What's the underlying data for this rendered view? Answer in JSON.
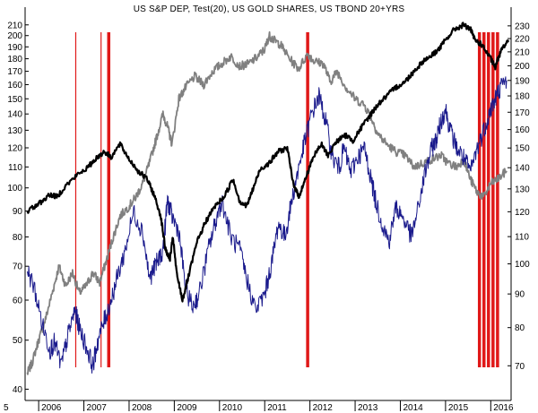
{
  "chart_data": {
    "type": "line",
    "title": "US S&P DEP, Test(20), US GOLD SHARES, US TBOND 20+YRS",
    "x_range": [
      "2005-09",
      "2016-06"
    ],
    "x_ticks": [
      "5",
      "2006",
      "2007",
      "2008",
      "2009",
      "2010",
      "2011",
      "2012",
      "2013",
      "2014",
      "2015",
      "2016"
    ],
    "y_left": {
      "scale": "log",
      "range": [
        38,
        215
      ],
      "ticks": [
        40,
        50,
        60,
        70,
        80,
        90,
        100,
        110,
        120,
        130,
        140,
        150,
        160,
        170,
        180,
        190,
        200,
        210
      ]
    },
    "y_right": {
      "scale": "log",
      "range": [
        62,
        235
      ],
      "ticks": [
        70,
        80,
        90,
        100,
        110,
        120,
        130,
        140,
        150,
        160,
        170,
        180,
        190,
        200,
        210,
        220,
        230
      ]
    },
    "grid": false,
    "legend": "none",
    "colors": {
      "sp": "#000000",
      "gold": "#1a1a8c",
      "tbond": "#808080",
      "signal": "#e01818"
    },
    "series": [
      {
        "key": "sp",
        "axis": "left",
        "x": [
          2005.75,
          2006.0,
          2006.25,
          2006.4,
          2006.6,
          2006.85,
          2007.1,
          2007.25,
          2007.45,
          2007.6,
          2007.8,
          2008.0,
          2008.2,
          2008.4,
          2008.55,
          2008.7,
          2008.8,
          2008.9,
          2008.97,
          2009.05,
          2009.18,
          2009.3,
          2009.5,
          2009.7,
          2009.9,
          2010.1,
          2010.3,
          2010.45,
          2010.6,
          2010.75,
          2010.9,
          2011.1,
          2011.3,
          2011.5,
          2011.62,
          2011.75,
          2011.9,
          2012.05,
          2012.25,
          2012.4,
          2012.6,
          2012.8,
          2012.95,
          2013.15,
          2013.35,
          2013.5,
          2013.7,
          2013.9,
          2014.1,
          2014.3,
          2014.5,
          2014.7,
          2014.85,
          2015.0,
          2015.2,
          2015.4,
          2015.55,
          2015.65,
          2015.8,
          2016.0,
          2016.1,
          2016.25,
          2016.4
        ],
        "y": [
          90,
          93,
          97,
          96,
          101,
          106,
          110,
          114,
          118,
          115,
          122,
          114,
          108,
          104,
          97,
          88,
          76,
          72,
          80,
          68,
          60,
          66,
          78,
          86,
          92,
          96,
          104,
          94,
          92,
          100,
          109,
          112,
          118,
          120,
          103,
          96,
          104,
          114,
          122,
          116,
          124,
          127,
          124,
          132,
          140,
          146,
          152,
          158,
          162,
          170,
          178,
          183,
          188,
          196,
          206,
          210,
          206,
          196,
          192,
          180,
          173,
          190,
          195
        ]
      },
      {
        "key": "gold",
        "axis": "right",
        "x": [
          2005.75,
          2005.9,
          2006.1,
          2006.25,
          2006.35,
          2006.5,
          2006.65,
          2006.8,
          2006.9,
          2007.05,
          2007.2,
          2007.3,
          2007.45,
          2007.6,
          2007.75,
          2007.9,
          2008.1,
          2008.3,
          2008.45,
          2008.6,
          2008.75,
          2008.85,
          2008.95,
          2009.1,
          2009.25,
          2009.4,
          2009.55,
          2009.75,
          2009.9,
          2010.05,
          2010.25,
          2010.45,
          2010.6,
          2010.8,
          2011.0,
          2011.15,
          2011.3,
          2011.45,
          2011.6,
          2011.75,
          2011.9,
          2012.05,
          2012.2,
          2012.35,
          2012.5,
          2012.65,
          2012.75,
          2012.9,
          2013.05,
          2013.2,
          2013.3,
          2013.45,
          2013.6,
          2013.75,
          2013.9,
          2014.05,
          2014.25,
          2014.4,
          2014.55,
          2014.7,
          2014.8,
          2014.9,
          2015.0,
          2015.1,
          2015.25,
          2015.4,
          2015.55,
          2015.7,
          2015.85,
          2016.0,
          2016.1,
          2016.2,
          2016.35
        ],
        "y": [
          98,
          92,
          80,
          74,
          76,
          70,
          78,
          85,
          80,
          75,
          70,
          76,
          82,
          88,
          96,
          104,
          120,
          112,
          95,
          100,
          105,
          125,
          118,
          112,
          92,
          86,
          90,
          105,
          115,
          125,
          110,
          105,
          95,
          85,
          90,
          100,
          115,
          110,
          125,
          140,
          155,
          170,
          180,
          165,
          145,
          140,
          150,
          138,
          145,
          150,
          140,
          125,
          115,
          108,
          122,
          118,
          110,
          122,
          138,
          150,
          155,
          165,
          172,
          160,
          150,
          145,
          138,
          150,
          160,
          172,
          178,
          185,
          190
        ]
      },
      {
        "key": "tbond",
        "axis": "left",
        "x": [
          2005.75,
          2005.85,
          2006.0,
          2006.15,
          2006.3,
          2006.45,
          2006.6,
          2006.75,
          2006.9,
          2007.05,
          2007.2,
          2007.35,
          2007.5,
          2007.65,
          2007.8,
          2008.0,
          2008.15,
          2008.3,
          2008.45,
          2008.6,
          2008.75,
          2008.85,
          2008.95,
          2009.1,
          2009.25,
          2009.45,
          2009.65,
          2009.85,
          2010.05,
          2010.25,
          2010.45,
          2010.65,
          2010.85,
          2011.0,
          2011.1,
          2011.2,
          2011.35,
          2011.55,
          2011.75,
          2011.95,
          2012.1,
          2012.3,
          2012.45,
          2012.6,
          2012.8,
          2013.0,
          2013.2,
          2013.35,
          2013.5,
          2013.7,
          2013.9,
          2014.1,
          2014.3,
          2014.5,
          2014.7,
          2014.9,
          2015.05,
          2015.25,
          2015.4,
          2015.55,
          2015.7,
          2015.85,
          2016.0,
          2016.15,
          2016.35
        ],
        "y": [
          43,
          45,
          50,
          55,
          62,
          70,
          64,
          68,
          62,
          64,
          68,
          65,
          72,
          80,
          88,
          92,
          96,
          102,
          112,
          125,
          140,
          132,
          122,
          150,
          158,
          166,
          160,
          170,
          176,
          182,
          174,
          176,
          182,
          188,
          200,
          196,
          192,
          180,
          172,
          184,
          178,
          176,
          162,
          170,
          158,
          150,
          146,
          138,
          128,
          122,
          118,
          116,
          110,
          112,
          114,
          116,
          112,
          110,
          114,
          104,
          98,
          96,
          102,
          104,
          108
        ]
      }
    ],
    "signals": [
      {
        "x": 2006.82,
        "width": "thin"
      },
      {
        "x": 2007.38,
        "width": "thin"
      },
      {
        "x": 2007.55,
        "width": "thick"
      },
      {
        "x": 2011.95,
        "width": "thick"
      },
      {
        "x": 2015.75,
        "width": "thick"
      },
      {
        "x": 2015.85,
        "width": "thick"
      },
      {
        "x": 2015.95,
        "width": "thick"
      },
      {
        "x": 2016.05,
        "width": "thick"
      },
      {
        "x": 2016.15,
        "width": "thick"
      }
    ]
  }
}
